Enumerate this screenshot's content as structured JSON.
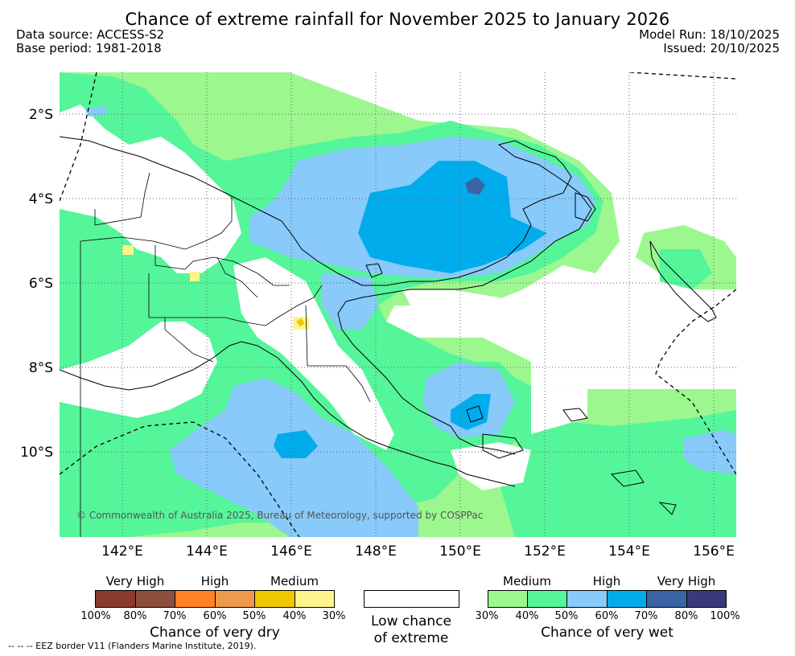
{
  "title": "Chance of extreme rainfall for November 2025 to January 2026",
  "meta": {
    "data_source": "Data source: ACCESS-S2",
    "base_period": "Base period: 1981-2018",
    "model_run": "Model Run: 18/10/2025",
    "issued": "Issued: 20/10/2025"
  },
  "map": {
    "lon_range": [
      140.5,
      156.5
    ],
    "lat_range": [
      -12,
      -1
    ],
    "lon_ticks": [
      "142°E",
      "144°E",
      "146°E",
      "148°E",
      "150°E",
      "152°E",
      "154°E",
      "156°E"
    ],
    "lat_ticks": [
      "2°S",
      "4°S",
      "6°S",
      "8°S",
      "10°S"
    ],
    "grid": true,
    "copyright": "© Commonwealth of Australia 2025, Bureau of Meteorology, supported by COSPPac"
  },
  "legend": {
    "dry": {
      "levels": [
        "Very High",
        "High",
        "Medium"
      ],
      "colors": [
        "#8b3a2e",
        "#8b4f3c",
        "#ff8025",
        "#ee9a4a",
        "#f0c800",
        "#fdf58b"
      ],
      "ticks": [
        "100%",
        "80%",
        "70%",
        "60%",
        "50%",
        "40%",
        "30%"
      ],
      "title": "Chance of very dry"
    },
    "low": {
      "line1": "Low chance",
      "line2": "of extreme",
      "color": "#ffffff"
    },
    "wet": {
      "levels": [
        "Medium",
        "High",
        "Very High"
      ],
      "colors": [
        "#9cf78f",
        "#55f59a",
        "#88cafa",
        "#00acec",
        "#3a64a4",
        "#3a3a7b"
      ],
      "ticks": [
        "30%",
        "40%",
        "50%",
        "60%",
        "70%",
        "80%",
        "100%"
      ],
      "title": "Chance of very wet"
    }
  },
  "eez_note": "--  --  -- EEZ border V11 (Flanders Marine Institute, 2019)."
}
